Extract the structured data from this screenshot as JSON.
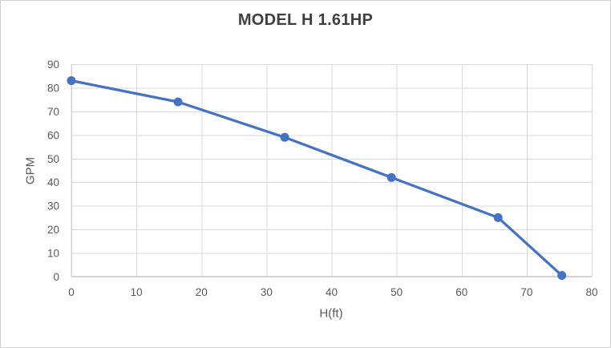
{
  "chart_data": {
    "type": "line",
    "title": "MODEL H 1.61HP",
    "xlabel": "H(ft)",
    "ylabel": "GPM",
    "x": [
      0,
      16.4,
      32.8,
      49.2,
      65.6,
      75.4
    ],
    "y": [
      83,
      74,
      59,
      42,
      25,
      0.5
    ],
    "xlim": [
      0,
      80
    ],
    "ylim": [
      0,
      90
    ],
    "x_ticks": [
      0,
      10,
      20,
      30,
      40,
      50,
      60,
      70,
      80
    ],
    "y_ticks": [
      0,
      10,
      20,
      30,
      40,
      50,
      60,
      70,
      80,
      90
    ],
    "grid": true,
    "legend": false,
    "marker": "circle"
  },
  "styles": {
    "line_color": "#4472C4",
    "marker_color": "#4472C4",
    "gridline_color": "#D9D9D9",
    "axis_line_color": "#D3D3D3",
    "tick_label_color": "#595959",
    "axis_title_color": "#595959",
    "chart_title_color": "#404040",
    "background_color": "#FFFFFF",
    "border_color": "#D0D0D0"
  }
}
